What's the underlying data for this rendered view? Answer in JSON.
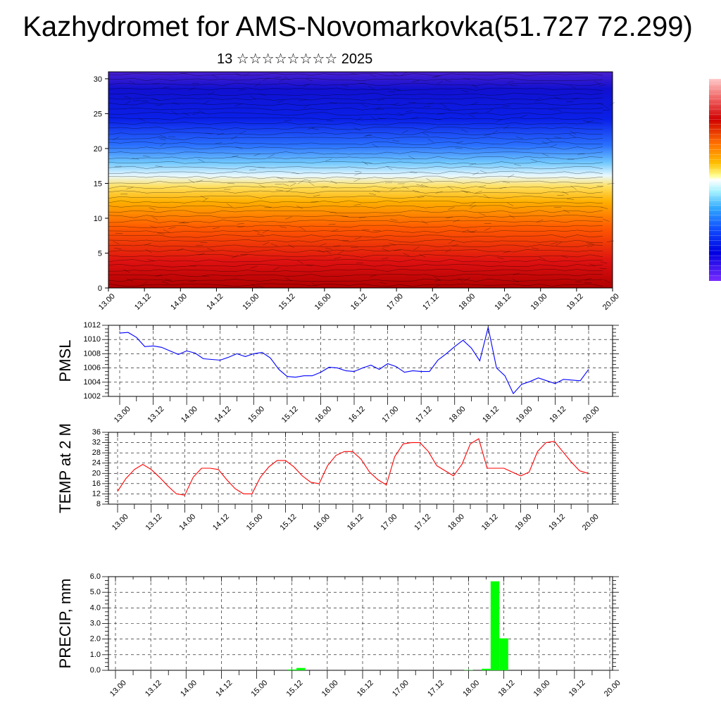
{
  "header": {
    "title": "Kazhydromet for AMS-Novomarkovka(51.727 72.299)",
    "subtitle": "13 ☆☆☆☆☆☆☆☆ 2025"
  },
  "colors": {
    "pmsl": "#0000ff",
    "temp": "#ff0000",
    "precip": "#00ff00",
    "grid": "#000000",
    "colorbar": [
      "#ffc0c0",
      "#f08080",
      "#e03030",
      "#c00000",
      "#ff6000",
      "#ff9000",
      "#ffc000",
      "#ffff80",
      "#e0ffff",
      "#80e0ff",
      "#40a0ff",
      "#2060ff",
      "#0000ff",
      "#3000c0",
      "#8000ff"
    ]
  },
  "time_ticks": [
    "13.00",
    "13.12",
    "14.00",
    "14.12",
    "15.00",
    "15.12",
    "16.00",
    "16.12",
    "17.00",
    "17.12",
    "18.00",
    "18.12",
    "19.00",
    "19.12",
    "20.00"
  ],
  "chart_data": [
    {
      "type": "heatmap",
      "name_hint": "vertical wind/temperature cross-section",
      "xlabel": "",
      "ylabel": "",
      "y_ticks": [
        0,
        5,
        10,
        15,
        20,
        25,
        30
      ],
      "ylim": [
        0,
        31
      ],
      "xlim": [
        0,
        14
      ],
      "grid": false,
      "description_values": {
        "levels_warm_to_cold": [
          "red",
          "orange",
          "yellow",
          "light-blue",
          "blue",
          "violet"
        ]
      }
    },
    {
      "type": "line",
      "ylabel": "PMSL",
      "ylim": [
        1002,
        1012
      ],
      "y_ticks": [
        1002,
        1004,
        1006,
        1008,
        1010,
        1012
      ],
      "grid": true,
      "series": [
        {
          "x": [
            0,
            0.25,
            0.5,
            0.75,
            1,
            1.25,
            1.5,
            1.75,
            2,
            2.25,
            2.5,
            2.75,
            3,
            3.25,
            3.5,
            3.75,
            4,
            4.25,
            4.5,
            4.75,
            5,
            5.25,
            5.5,
            5.75,
            6,
            6.25,
            6.5,
            6.75,
            7,
            7.25,
            7.5,
            7.75,
            8,
            8.25,
            8.5,
            8.75,
            9,
            9.25,
            9.5,
            9.75,
            10,
            10.25,
            10.5,
            10.75,
            11,
            11.25,
            11.5,
            11.75,
            12,
            12.25,
            12.5,
            12.75,
            13,
            13.25,
            13.5,
            13.75,
            14
          ],
          "values": [
            1010.9,
            1011.0,
            1010.3,
            1009.0,
            1009.1,
            1008.9,
            1008.4,
            1007.9,
            1008.4,
            1008.1,
            1007.3,
            1007.2,
            1007.1,
            1007.5,
            1008.0,
            1007.6,
            1008.0,
            1008.2,
            1007.4,
            1005.8,
            1004.8,
            1004.7,
            1004.9,
            1004.9,
            1005.4,
            1006.1,
            1006.0,
            1005.6,
            1005.5,
            1006.0,
            1006.4,
            1005.8,
            1006.6,
            1006.2,
            1005.4,
            1005.6,
            1005.5,
            1005.5,
            1007.1,
            1008.0,
            1009.0,
            1009.9,
            1008.8,
            1007.0,
            1011.7,
            1006.0,
            1004.9,
            1002.4,
            1003.7,
            1004.1,
            1004.6,
            1004.2,
            1003.8,
            1004.4,
            1004.3,
            1004.2,
            1005.8
          ]
        }
      ]
    },
    {
      "type": "line",
      "ylabel": "TEMP at 2 M",
      "ylim": [
        8,
        36
      ],
      "y_ticks": [
        8,
        12,
        16,
        20,
        24,
        28,
        32,
        36
      ],
      "grid": true,
      "series": [
        {
          "x": [
            0,
            0.25,
            0.5,
            0.75,
            1,
            1.25,
            1.5,
            1.75,
            2,
            2.25,
            2.5,
            2.75,
            3,
            3.25,
            3.5,
            3.75,
            4,
            4.25,
            4.5,
            4.75,
            5,
            5.25,
            5.5,
            5.75,
            6,
            6.25,
            6.5,
            6.75,
            7,
            7.25,
            7.5,
            7.75,
            8,
            8.25,
            8.5,
            8.75,
            9,
            9.25,
            9.5,
            9.75,
            10,
            10.25,
            10.5,
            10.75,
            11,
            11.25,
            11.5,
            11.75,
            12,
            12.25,
            12.5,
            12.75,
            13,
            13.25,
            13.5,
            13.75,
            14
          ],
          "values": [
            13.0,
            18.0,
            21.5,
            23.5,
            21.5,
            18.5,
            15.0,
            12.0,
            11.5,
            18.5,
            22.0,
            22.0,
            21.5,
            17.5,
            14.0,
            12.0,
            12.0,
            18.5,
            22.5,
            25.0,
            25.0,
            22.5,
            19.0,
            16.5,
            16.0,
            23.0,
            27.0,
            28.5,
            28.5,
            25.5,
            20.5,
            17.5,
            15.5,
            26.5,
            31.5,
            32.0,
            32.0,
            28.5,
            23.0,
            21.0,
            19.0,
            23.5,
            31.5,
            33.5,
            22.0,
            22.0,
            22.0,
            20.5,
            19.0,
            20.5,
            28.5,
            32.0,
            32.5,
            28.5,
            24.5,
            21.0,
            20.0
          ]
        }
      ]
    },
    {
      "type": "bar",
      "ylabel": "PRECIP, mm",
      "ylim": [
        0,
        6
      ],
      "y_ticks": [
        "0.0",
        "1.0",
        "2.0",
        "3.0",
        "4.0",
        "5.0",
        "6.0"
      ],
      "grid": true,
      "series": [
        {
          "x": [
            5.0,
            5.25,
            10.0,
            10.5,
            10.75,
            11.0
          ],
          "values": [
            0.05,
            0.15,
            0.02,
            0.1,
            5.7,
            2.05
          ]
        }
      ]
    }
  ]
}
